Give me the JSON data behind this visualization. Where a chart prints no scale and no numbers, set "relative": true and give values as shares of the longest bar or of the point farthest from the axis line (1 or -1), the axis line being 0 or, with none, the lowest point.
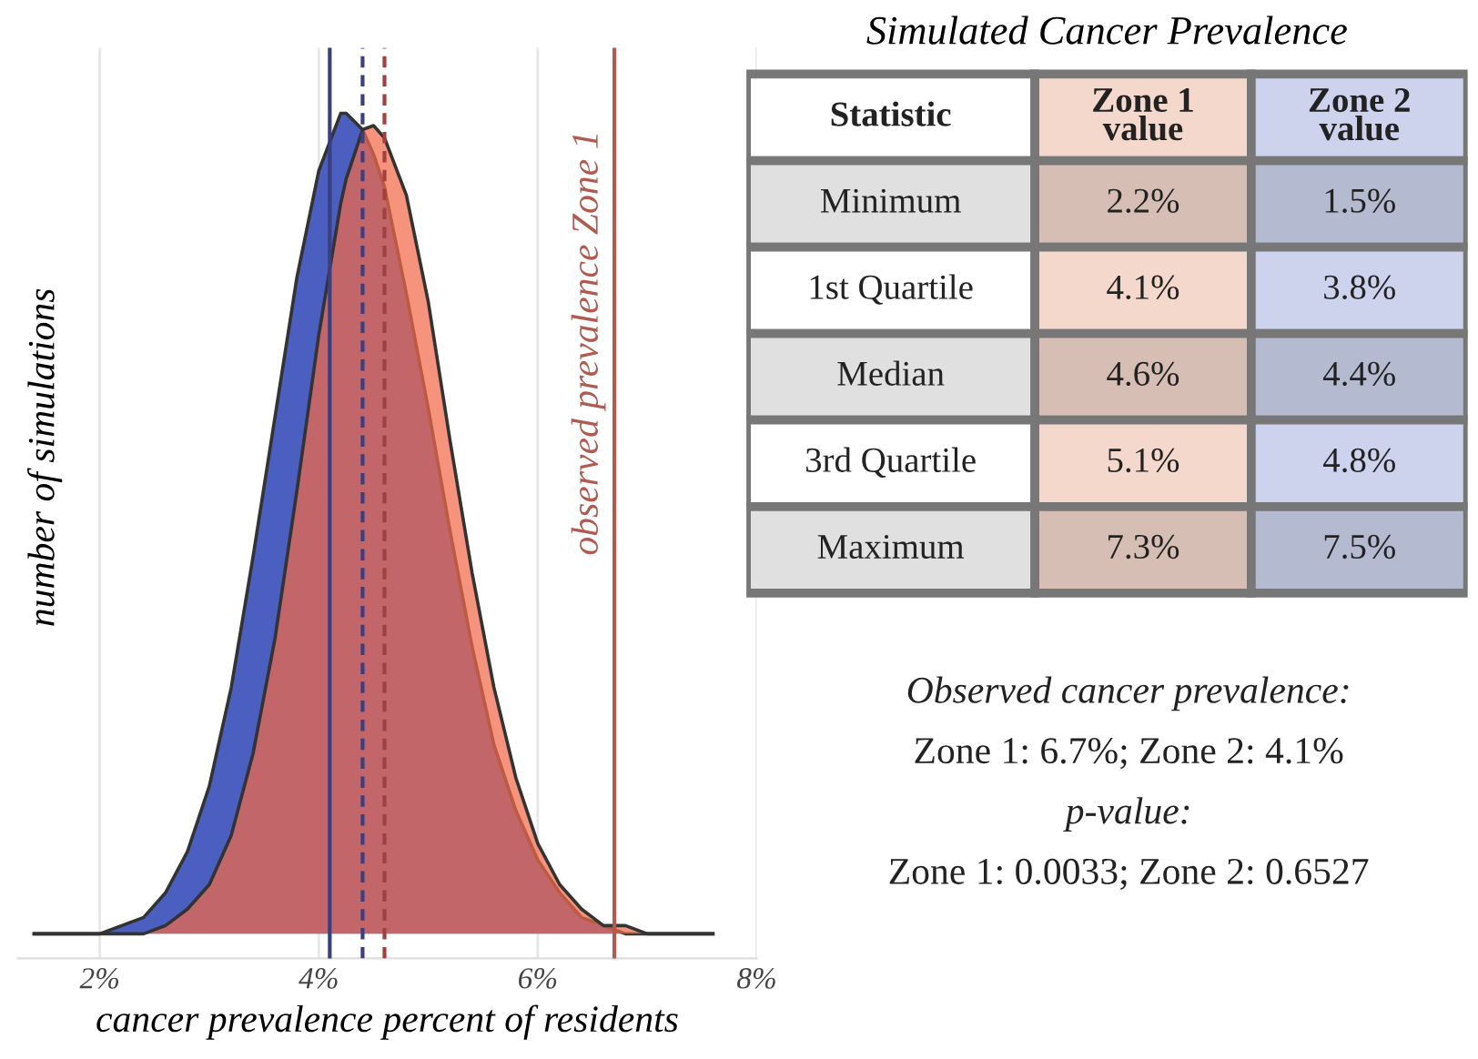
{
  "chart_data": [
    {
      "type": "area",
      "relative": true,
      "xlabel": "cancer prevalence percent of residents",
      "ylabel": "number of simulations",
      "x": [
        1.4,
        1.6,
        1.8,
        2.0,
        2.2,
        2.4,
        2.6,
        2.8,
        3.0,
        3.2,
        3.4,
        3.6,
        3.8,
        4.0,
        4.2,
        4.25,
        4.4,
        4.5,
        4.6,
        4.8,
        5.0,
        5.2,
        5.4,
        5.6,
        5.8,
        6.0,
        6.2,
        6.4,
        6.6,
        6.8,
        7.0,
        7.2,
        7.4,
        7.6
      ],
      "series": [
        {
          "color": "#4a5fbf",
          "values": [
            0,
            0,
            0,
            0,
            0.01,
            0.02,
            0.05,
            0.1,
            0.18,
            0.3,
            0.46,
            0.63,
            0.8,
            0.93,
            1.0,
            1.0,
            0.98,
            0.95,
            0.91,
            0.78,
            0.64,
            0.49,
            0.35,
            0.23,
            0.15,
            0.09,
            0.05,
            0.02,
            0.01,
            0,
            0,
            0,
            0,
            0
          ]
        },
        {
          "color": "#f26a4a",
          "values": [
            0,
            0,
            0,
            0,
            0,
            0,
            0.01,
            0.03,
            0.06,
            0.12,
            0.22,
            0.36,
            0.54,
            0.73,
            0.89,
            0.92,
            0.98,
            0.985,
            0.97,
            0.9,
            0.77,
            0.6,
            0.44,
            0.3,
            0.19,
            0.11,
            0.06,
            0.03,
            0.01,
            0.01,
            0,
            0,
            0,
            0
          ]
        }
      ],
      "xlim": [
        1.25,
        8.0
      ],
      "xticks": [
        {
          "value": 2,
          "label": "2%"
        },
        {
          "value": 4,
          "label": "4%"
        },
        {
          "value": 6,
          "label": "6%"
        },
        {
          "value": 8,
          "label": "8%"
        }
      ],
      "grid": "x",
      "ref_lines": [
        {
          "axis": "x",
          "value": 4.1,
          "color": "#3a3f80",
          "line_style": "solid"
        },
        {
          "axis": "x",
          "value": 4.4,
          "color": "#3a3f80",
          "line_style": "dashed"
        },
        {
          "axis": "x",
          "value": 4.6,
          "color": "#a04040",
          "line_style": "dashed"
        },
        {
          "axis": "x",
          "value": 6.7,
          "color": "#b05a50",
          "line_style": "solid",
          "label": "observed prevalence Zone 1"
        }
      ]
    },
    {
      "type": "other",
      "title": "Simulated Cancer Prevalence",
      "categories": [
        "Statistic",
        "Zone 1 value",
        "Zone 2 value"
      ],
      "y_categories": [
        "Minimum",
        "1st Quartile",
        "Median",
        "3rd Quartile",
        "Maximum"
      ],
      "cell_labels": [
        [
          "2.2%",
          "1.5%"
        ],
        [
          "4.1%",
          "3.8%"
        ],
        [
          "4.6%",
          "4.4%"
        ],
        [
          "5.1%",
          "4.8%"
        ],
        [
          "7.3%",
          "7.5%"
        ]
      ],
      "colors": [
        "#ffffff",
        "#f4d8cc",
        "#cdd3ec"
      ],
      "annotations": [
        "Observed cancer prevalence:",
        "Zone 1: 6.7%; Zone 2: 4.1%",
        "p-value:",
        "Zone 1: 0.0033; Zone 2: 0.6527"
      ]
    }
  ]
}
